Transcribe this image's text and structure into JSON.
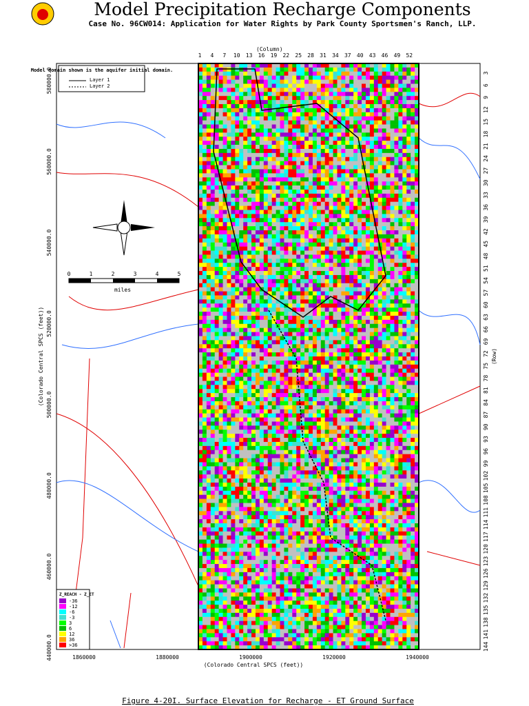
{
  "header": {
    "title": "Model Precipitation Recharge Components",
    "subtitle": "Case No. 96CW014: Application for Water Rights by Park County Sportsmen's Ranch, LLP."
  },
  "map": {
    "column_label": "(Column)",
    "columns": [
      1,
      4,
      7,
      10,
      13,
      16,
      19,
      22,
      25,
      28,
      31,
      34,
      37,
      40,
      43,
      46,
      49,
      52
    ],
    "row_label": "(Row)",
    "rows": [
      3,
      6,
      9,
      12,
      15,
      18,
      21,
      24,
      27,
      30,
      33,
      36,
      39,
      42,
      45,
      48,
      51,
      54,
      57,
      60,
      63,
      66,
      69,
      72,
      75,
      78,
      81,
      84,
      87,
      90,
      93,
      96,
      99,
      102,
      105,
      108,
      111,
      114,
      117,
      120,
      123,
      126,
      129,
      132,
      135,
      138,
      141,
      144
    ],
    "y_axis_label": "(Colorado Central SPCS (feet))",
    "y_ticks": [
      "580000.0",
      "560000.0",
      "540000.0",
      "520000.0",
      "500000.0",
      "480000.0",
      "460000.0",
      "440000.0"
    ],
    "x_ticks": [
      "1860000",
      "1880000",
      "1900000",
      "1920000",
      "1940000"
    ],
    "x_axis_label": "(Colorado Central SPCS (feet))"
  },
  "domain_note": {
    "text": "Model domain shown is the aquifer initial domain.",
    "layer1": "Layer 1",
    "layer2": "Layer 2"
  },
  "scale_bar": {
    "ticks": [
      "0",
      "1",
      "2",
      "3",
      "4",
      "5"
    ],
    "unit": "miles"
  },
  "legend": {
    "title": "Z_REACH - Z_ET",
    "items": [
      {
        "label": "-36",
        "color": "#9900cc"
      },
      {
        "label": "-12",
        "color": "#ff00ff"
      },
      {
        "label": "-6",
        "color": "#00ffff"
      },
      {
        "label": "-3",
        "color": "#40e0d0"
      },
      {
        "label": "3",
        "color": "#00ff00"
      },
      {
        "label": "6",
        "color": "#00c000"
      },
      {
        "label": "12",
        "color": "#ffff00"
      },
      {
        "label": "36",
        "color": "#ffa500"
      },
      {
        "label": ">36",
        "color": "#ff0000"
      }
    ]
  },
  "caption": "Figure 4-20I. Surface Elevation for Recharge - ET Ground Surface"
}
